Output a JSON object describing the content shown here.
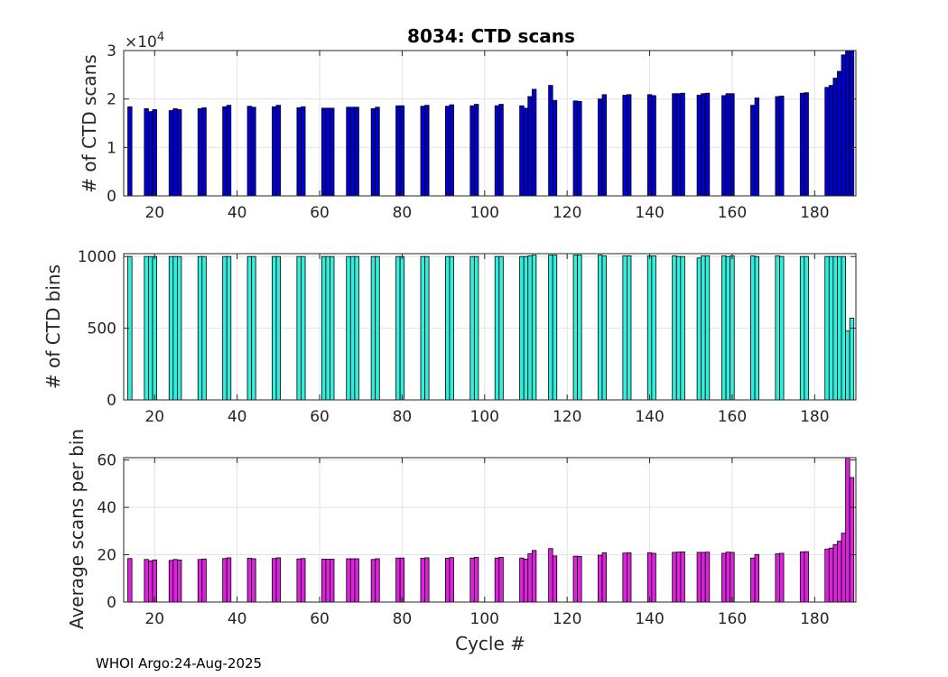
{
  "footer": "WHOI Argo:24-Aug-2025",
  "chart_data": [
    {
      "type": "bar",
      "title": "8034: CTD scans",
      "ylabel": "# of CTD scans",
      "xlabel": "",
      "color": "#0000cc",
      "xlim": [
        12.5,
        190
      ],
      "ylim": [
        0,
        30000
      ],
      "xticks": [
        20,
        40,
        60,
        80,
        100,
        120,
        140,
        160,
        180
      ],
      "yticks": [
        0,
        10000,
        20000,
        30000
      ],
      "ytick_labels": [
        "0",
        "1",
        "2",
        "3"
      ],
      "exponent_base": "×10",
      "exponent_power": "4",
      "x": [
        14,
        18,
        19,
        20,
        24,
        25,
        26,
        31,
        32,
        37,
        38,
        43,
        44,
        49,
        50,
        55,
        56,
        61,
        62,
        63,
        67,
        68,
        69,
        73,
        74,
        79,
        80,
        85,
        86,
        91,
        92,
        97,
        98,
        103,
        104,
        109,
        110,
        111,
        112,
        116,
        117,
        122,
        123,
        128,
        129,
        134,
        135,
        140,
        141,
        146,
        147,
        148,
        152,
        153,
        154,
        158,
        159,
        160,
        165,
        166,
        171,
        172,
        177,
        178,
        183,
        184,
        185,
        186,
        187,
        188,
        189
      ],
      "values": [
        18400,
        18000,
        17400,
        17800,
        17600,
        18000,
        17800,
        18000,
        18200,
        18400,
        18700,
        18500,
        18300,
        18400,
        18700,
        18200,
        18400,
        18100,
        18100,
        18100,
        18300,
        18300,
        18300,
        18000,
        18300,
        18600,
        18600,
        18500,
        18700,
        18500,
        18800,
        18600,
        18900,
        18600,
        18900,
        18600,
        18100,
        20500,
        22000,
        22800,
        19700,
        19600,
        19500,
        20000,
        20900,
        20800,
        20900,
        20900,
        20700,
        21100,
        21100,
        21200,
        20800,
        21100,
        21200,
        20700,
        21100,
        21100,
        18700,
        20200,
        20500,
        20600,
        21200,
        21300,
        22400,
        22800,
        24300,
        25700,
        29100,
        30000,
        30000
      ]
    },
    {
      "type": "bar",
      "title": "",
      "ylabel": "# of CTD bins",
      "xlabel": "",
      "color": "#33eedd",
      "xlim": [
        12.5,
        190
      ],
      "ylim": [
        0,
        1020
      ],
      "xticks": [
        20,
        40,
        60,
        80,
        100,
        120,
        140,
        160,
        180
      ],
      "yticks": [
        0,
        500,
        1000
      ],
      "ytick_labels": [
        "0",
        "500",
        "1000"
      ],
      "x": [
        14,
        18,
        19,
        20,
        24,
        25,
        26,
        31,
        32,
        37,
        38,
        43,
        44,
        49,
        50,
        55,
        56,
        61,
        62,
        63,
        67,
        68,
        69,
        73,
        74,
        79,
        80,
        85,
        86,
        91,
        92,
        97,
        98,
        103,
        104,
        109,
        110,
        111,
        112,
        116,
        117,
        122,
        123,
        128,
        129,
        134,
        135,
        140,
        141,
        146,
        147,
        148,
        152,
        153,
        154,
        158,
        159,
        160,
        165,
        166,
        171,
        172,
        177,
        178,
        183,
        184,
        185,
        186,
        187,
        188,
        189
      ],
      "values": [
        1000,
        1000,
        1000,
        1000,
        1000,
        1000,
        1000,
        1000,
        1000,
        1000,
        1000,
        1000,
        1000,
        1000,
        1000,
        1000,
        1000,
        1000,
        1000,
        1000,
        1000,
        1000,
        1000,
        1000,
        1000,
        1000,
        1000,
        1000,
        1000,
        1000,
        1000,
        1000,
        1000,
        1000,
        1000,
        1000,
        1000,
        1005,
        1010,
        1010,
        1010,
        1010,
        1010,
        1010,
        1005,
        1005,
        1005,
        1005,
        1005,
        1005,
        1000,
        1000,
        990,
        1005,
        1005,
        1005,
        1000,
        1005,
        1005,
        1000,
        1005,
        1000,
        1000,
        1000,
        1000,
        1000,
        1000,
        1000,
        1000,
        480,
        570
      ]
    },
    {
      "type": "bar",
      "title": "",
      "ylabel": "Average scans per bin",
      "xlabel": "Cycle #",
      "color": "#dd22dd",
      "xlim": [
        12.5,
        190
      ],
      "ylim": [
        0,
        61
      ],
      "xticks": [
        20,
        40,
        60,
        80,
        100,
        120,
        140,
        160,
        180
      ],
      "yticks": [
        0,
        20,
        40,
        60
      ],
      "ytick_labels": [
        "0",
        "20",
        "40",
        "60"
      ],
      "x": [
        14,
        18,
        19,
        20,
        24,
        25,
        26,
        31,
        32,
        37,
        38,
        43,
        44,
        49,
        50,
        55,
        56,
        61,
        62,
        63,
        67,
        68,
        69,
        73,
        74,
        79,
        80,
        85,
        86,
        91,
        92,
        97,
        98,
        103,
        104,
        109,
        110,
        111,
        112,
        116,
        117,
        122,
        123,
        128,
        129,
        134,
        135,
        140,
        141,
        146,
        147,
        148,
        152,
        153,
        154,
        158,
        159,
        160,
        165,
        166,
        171,
        172,
        177,
        178,
        183,
        184,
        185,
        186,
        187,
        188,
        189
      ],
      "values": [
        18.4,
        18,
        17.4,
        17.8,
        17.6,
        18,
        17.8,
        18,
        18.2,
        18.4,
        18.7,
        18.5,
        18.3,
        18.4,
        18.7,
        18.2,
        18.4,
        18.1,
        18.1,
        18.1,
        18.3,
        18.3,
        18.3,
        18,
        18.3,
        18.6,
        18.6,
        18.5,
        18.7,
        18.5,
        18.8,
        18.6,
        18.9,
        18.6,
        18.9,
        18.6,
        18.1,
        20.4,
        21.8,
        22.6,
        19.5,
        19.4,
        19.3,
        19.8,
        20.8,
        20.7,
        20.8,
        20.8,
        20.6,
        21,
        21.1,
        21.2,
        21,
        21,
        21.1,
        20.6,
        21.1,
        21,
        18.6,
        20.1,
        20.4,
        20.6,
        21.2,
        21.3,
        22.4,
        22.8,
        24.3,
        25.7,
        29.1,
        62,
        52.6
      ]
    }
  ]
}
